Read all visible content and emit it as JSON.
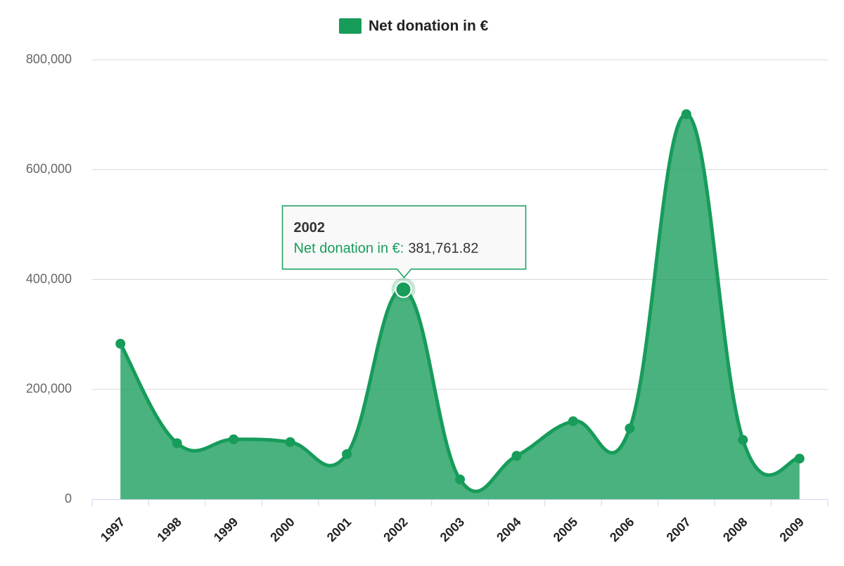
{
  "chart_data": {
    "type": "area-spline",
    "categories": [
      "1997",
      "1998",
      "1999",
      "2000",
      "2001",
      "2002",
      "2003",
      "2004",
      "2005",
      "2006",
      "2007",
      "2008",
      "2009"
    ],
    "series": [
      {
        "name": "Net donation in €",
        "color": "#179c5a",
        "values": [
          283000,
          102000,
          109000,
          104000,
          82000,
          381761.82,
          36000,
          79000,
          142000,
          129000,
          701000,
          108000,
          74000
        ],
        "value_labels": [
          null,
          null,
          null,
          null,
          null,
          "381,761.82",
          null,
          null,
          null,
          null,
          null,
          null,
          null
        ]
      }
    ],
    "tooltip_label": "Net donation in €:",
    "ylim": [
      0,
      800000
    ],
    "yticks": [
      0,
      {
        "value": 200000,
        "label": "200,000"
      },
      {
        "value": 400000,
        "label": "400,000"
      },
      {
        "value": 600000,
        "label": "600,000"
      },
      {
        "value": 800000,
        "label": "800,000"
      }
    ],
    "grid": true,
    "legend": "top"
  }
}
